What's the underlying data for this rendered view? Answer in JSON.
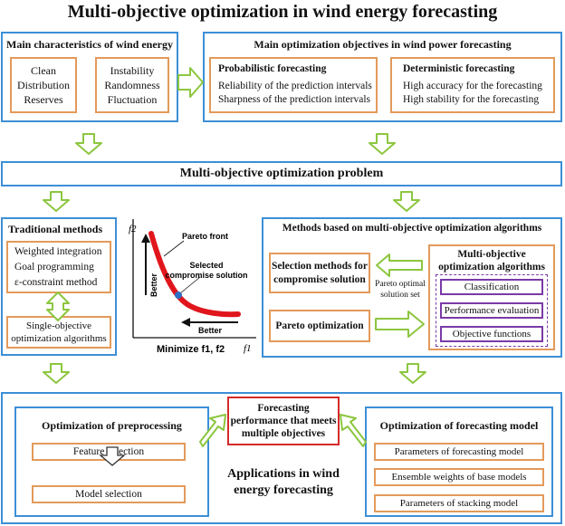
{
  "title": "Multi-objective optimization in wind energy forecasting",
  "characteristics": {
    "heading": "Main characteristics of wind energy",
    "box1": [
      "Clean",
      "Distribution",
      "Reserves"
    ],
    "box2": [
      "Instability",
      "Randomness",
      "Fluctuation"
    ]
  },
  "objectives": {
    "heading": "Main optimization objectives in wind power forecasting",
    "probabilistic": {
      "heading": "Probabilistic forecasting",
      "lines": [
        "Reliability of the prediction intervals",
        "Sharpness of the prediction intervals"
      ]
    },
    "deterministic": {
      "heading": "Deterministic forecasting",
      "lines": [
        "High accuracy for the forecasting",
        "High stability for the forecasting"
      ]
    }
  },
  "problem": "Multi-objective optimization problem",
  "traditional": {
    "heading": "Traditional methods",
    "lines": [
      "Weighted integration",
      "Goal programming",
      "ε-constraint method"
    ],
    "single": [
      "Single-objective",
      "optimization algorithms"
    ]
  },
  "pareto_plot": {
    "y_axis": "f2",
    "x_axis": "f1",
    "better_y": "Better",
    "better_x": "Better",
    "front_label": "Pareto front",
    "selected_label": [
      "Selected",
      "compromise solution"
    ],
    "minimize_label": "Minimize f1, f2"
  },
  "moo_methods": {
    "heading": "Methods based on multi-objective optimization algorithms",
    "selection": [
      "Selection methods for",
      "compromise solution"
    ],
    "pareto_set": [
      "Pareto optimal",
      "solution set"
    ],
    "pareto_opt": "Pareto optimization",
    "algorithms": {
      "heading": [
        "Multi-objective",
        "optimization algorithms"
      ],
      "items": [
        "Classification",
        "Performance evaluation",
        "Objective functions"
      ]
    }
  },
  "applications": {
    "forecast_box": [
      "Forecasting",
      "performance that meets",
      "multiple objectives"
    ],
    "preprocessing": {
      "heading": "Optimization of preprocessing",
      "items": [
        "Feature selection",
        "Model selection"
      ]
    },
    "model": {
      "heading": "Optimization of forecasting model",
      "items": [
        "Parameters of  forecasting model",
        "Ensemble weights of base models",
        "Parameters of stacking model"
      ]
    },
    "center_label": [
      "Applications in wind",
      "energy forecasting"
    ]
  },
  "colors": {
    "blue": "#3d8fd6",
    "orange": "#e39a5a",
    "purple": "#7a3aa8",
    "red_curve": "#e0161c",
    "arrow_green": "#8cc63f",
    "selected_point": "#2f6fc4"
  }
}
